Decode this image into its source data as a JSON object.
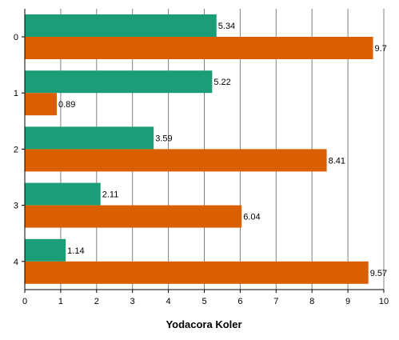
{
  "chart_data": {
    "type": "bar",
    "orientation": "horizontal",
    "categories": [
      "0",
      "1",
      "2",
      "3",
      "4"
    ],
    "series": [
      {
        "values": [
          5.34,
          5.22,
          3.59,
          2.11,
          1.14
        ],
        "color": "#1b9e77"
      },
      {
        "values": [
          9.7,
          0.89,
          8.41,
          6.04,
          9.57
        ],
        "color": "#d95f02"
      }
    ],
    "title": "",
    "xlabel": "Yodacora Koler",
    "ylabel": "",
    "xlim": [
      0,
      10
    ],
    "xticks": [
      "0",
      "1",
      "2",
      "3",
      "4",
      "5",
      "6",
      "7",
      "8",
      "9",
      "10"
    ],
    "grid": "vertical",
    "legend": "none"
  }
}
